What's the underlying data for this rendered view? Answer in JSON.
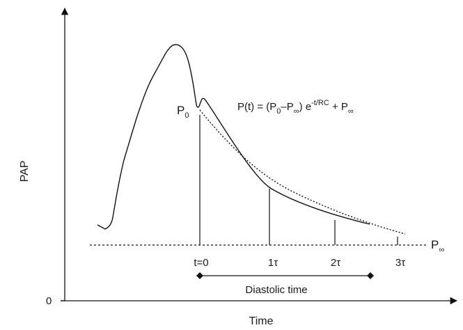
{
  "axes": {
    "x_title": "Time",
    "y_title": "PAP",
    "origin_label": "0"
  },
  "equation": {
    "lhs": "P(t) = (P",
    "sub1": "0",
    "dash": "–P",
    "sub2": "∞",
    "close": ") e",
    "exponent": "-t/RC",
    "rhs": " + P",
    "sub3": "∞"
  },
  "markers": {
    "p0_main": "P",
    "p0_sub": "0",
    "pinf_main": "P",
    "pinf_sub": "∞"
  },
  "time_ticks": [
    "t=0",
    "1τ",
    "2τ",
    "3τ"
  ],
  "interval_label": "Diastolic time"
}
